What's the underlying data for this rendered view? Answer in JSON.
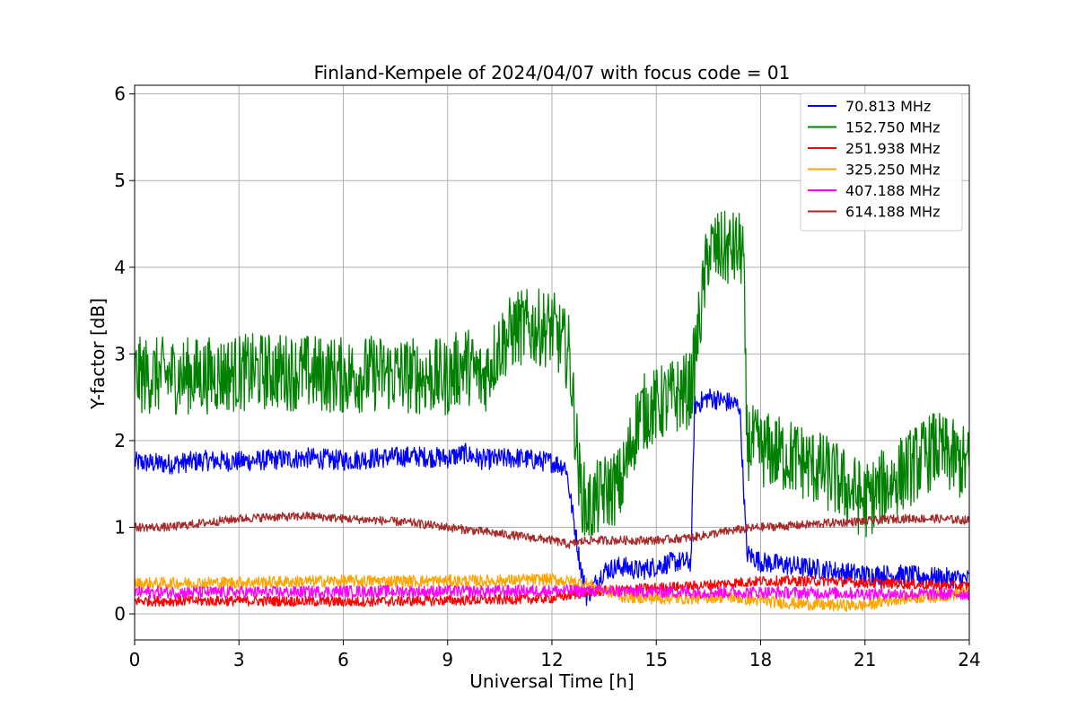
{
  "chart_data": {
    "type": "line",
    "title": "Finland-Kempele of 2024/04/07 with focus code = 01",
    "xlabel": "Universal Time [h]",
    "ylabel": "Y-factor [dB]",
    "xlim": [
      0,
      24
    ],
    "ylim": [
      -0.3,
      6.1
    ],
    "xticks": [
      0,
      3,
      6,
      9,
      12,
      15,
      18,
      21,
      24
    ],
    "yticks": [
      0,
      1,
      2,
      3,
      4,
      5,
      6
    ],
    "grid": true,
    "legend_position": "top-right",
    "series": [
      {
        "name": " 70.813 MHz",
        "color": "#0000ff",
        "x": [
          0,
          1,
          2,
          3,
          4,
          5,
          6,
          7,
          8,
          9,
          9.5,
          10,
          11,
          12,
          12.4,
          12.8,
          13.0,
          13.5,
          14,
          14.5,
          15,
          15.5,
          16,
          16.1,
          16.5,
          17,
          17.4,
          17.6,
          18,
          19,
          20,
          21,
          22,
          23,
          24
        ],
        "y": [
          1.75,
          1.73,
          1.77,
          1.76,
          1.78,
          1.8,
          1.77,
          1.8,
          1.82,
          1.8,
          1.85,
          1.78,
          1.8,
          1.75,
          1.7,
          0.6,
          0.2,
          0.5,
          0.55,
          0.5,
          0.55,
          0.6,
          0.6,
          2.4,
          2.5,
          2.45,
          2.4,
          0.7,
          0.6,
          0.55,
          0.5,
          0.45,
          0.45,
          0.42,
          0.4
        ],
        "noise": 0.12
      },
      {
        "name": "152.750 MHz",
        "color": "#008000",
        "x": [
          0,
          1,
          2,
          3,
          4,
          5,
          6,
          7,
          8,
          9,
          9.5,
          10,
          10.5,
          11,
          12,
          12.5,
          12.8,
          13.0,
          13.5,
          14,
          14.5,
          15,
          15.5,
          16,
          16.5,
          17,
          17.5,
          17.6,
          18,
          19,
          20,
          21,
          22,
          23,
          24
        ],
        "y": [
          2.75,
          2.75,
          2.75,
          2.78,
          2.8,
          2.78,
          2.75,
          2.78,
          2.75,
          2.72,
          2.9,
          2.7,
          3.1,
          3.3,
          3.3,
          3.0,
          1.5,
          1.2,
          1.4,
          1.5,
          2.3,
          2.4,
          2.5,
          2.6,
          4.2,
          4.2,
          4.2,
          2.0,
          1.9,
          1.8,
          1.6,
          1.3,
          1.6,
          1.9,
          1.7
        ],
        "noise": 0.45
      },
      {
        "name": "251.938 MHz",
        "color": "#ff0000",
        "x": [
          0,
          2,
          4,
          6,
          8,
          10,
          12,
          13,
          14,
          15,
          16,
          17,
          18,
          19,
          20,
          21,
          22,
          23,
          24
        ],
        "y": [
          0.15,
          0.15,
          0.15,
          0.14,
          0.15,
          0.16,
          0.18,
          0.25,
          0.28,
          0.3,
          0.32,
          0.35,
          0.38,
          0.38,
          0.38,
          0.36,
          0.35,
          0.33,
          0.32
        ],
        "noise": 0.06
      },
      {
        "name": "325.250 MHz",
        "color": "#ffa500",
        "x": [
          0,
          2,
          4,
          6,
          8,
          10,
          12,
          13,
          14,
          15,
          16,
          17,
          18,
          19,
          20,
          21,
          22,
          23,
          24
        ],
        "y": [
          0.35,
          0.36,
          0.37,
          0.38,
          0.38,
          0.38,
          0.4,
          0.35,
          0.2,
          0.18,
          0.18,
          0.2,
          0.15,
          0.12,
          0.1,
          0.1,
          0.18,
          0.2,
          0.25
        ],
        "noise": 0.07
      },
      {
        "name": "407.188 MHz",
        "color": "#ff00ff",
        "x": [
          0,
          2,
          4,
          6,
          8,
          10,
          12,
          14,
          16,
          18,
          20,
          22,
          24
        ],
        "y": [
          0.25,
          0.25,
          0.25,
          0.26,
          0.26,
          0.26,
          0.27,
          0.26,
          0.25,
          0.25,
          0.24,
          0.23,
          0.23
        ],
        "noise": 0.07
      },
      {
        "name": "614.188 MHz",
        "color": "#a52a2a",
        "x": [
          0,
          1,
          2,
          3,
          4,
          4.5,
          5,
          6,
          7,
          8,
          9,
          10,
          11,
          12,
          12.5,
          13,
          14,
          15,
          16,
          17,
          17.5,
          18,
          19,
          20,
          21,
          22,
          23,
          24
        ],
        "y": [
          1.0,
          1.0,
          1.05,
          1.1,
          1.12,
          1.12,
          1.13,
          1.1,
          1.08,
          1.05,
          1.0,
          0.95,
          0.9,
          0.85,
          0.8,
          0.85,
          0.85,
          0.85,
          0.88,
          0.95,
          0.98,
          1.0,
          1.02,
          1.05,
          1.07,
          1.1,
          1.1,
          1.08
        ],
        "noise": 0.05
      }
    ]
  }
}
